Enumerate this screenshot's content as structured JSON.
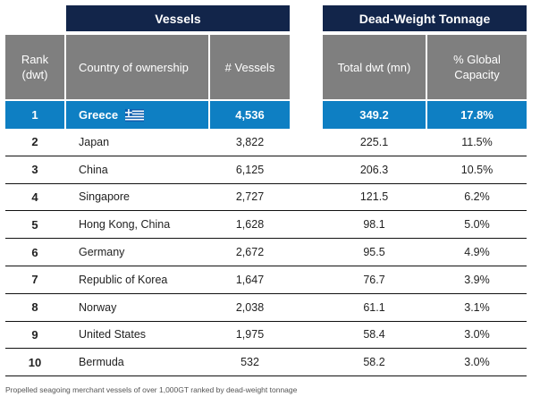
{
  "groups": {
    "vessels": "Vessels",
    "dwt": "Dead-Weight Tonnage"
  },
  "headers": {
    "rank": "Rank\n(dwt)",
    "country": "Country of ownership",
    "vessels": "# Vessels",
    "dwt": "Total dwt (mn)",
    "pct": "% Global\nCapacity"
  },
  "highlight": {
    "rank": "1",
    "country": "Greece",
    "flag_icon": "greece-flag-icon",
    "vessels": "4,536",
    "dwt": "349.2",
    "pct": "17.8%"
  },
  "rows": [
    {
      "rank": "2",
      "country": "Japan",
      "vessels": "3,822",
      "dwt": "225.1",
      "pct": "11.5%"
    },
    {
      "rank": "3",
      "country": "China",
      "vessels": "6,125",
      "dwt": "206.3",
      "pct": "10.5%"
    },
    {
      "rank": "4",
      "country": "Singapore",
      "vessels": "2,727",
      "dwt": "121.5",
      "pct": "6.2%"
    },
    {
      "rank": "5",
      "country": "Hong Kong, China",
      "vessels": "1,628",
      "dwt": "98.1",
      "pct": "5.0%"
    },
    {
      "rank": "6",
      "country": "Germany",
      "vessels": "2,672",
      "dwt": "95.5",
      "pct": "4.9%"
    },
    {
      "rank": "7",
      "country": "Republic of Korea",
      "vessels": "1,647",
      "dwt": "76.7",
      "pct": "3.9%"
    },
    {
      "rank": "8",
      "country": "Norway",
      "vessels": "2,038",
      "dwt": "61.1",
      "pct": "3.1%"
    },
    {
      "rank": "9",
      "country": "United States",
      "vessels": "1,975",
      "dwt": "58.4",
      "pct": "3.0%"
    },
    {
      "rank": "10",
      "country": "Bermuda",
      "vessels": "532",
      "dwt": "58.2",
      "pct": "3.0%"
    }
  ],
  "caption": "Propelled seagoing merchant vessels of over 1,000GT ranked by dead-weight tonnage"
}
